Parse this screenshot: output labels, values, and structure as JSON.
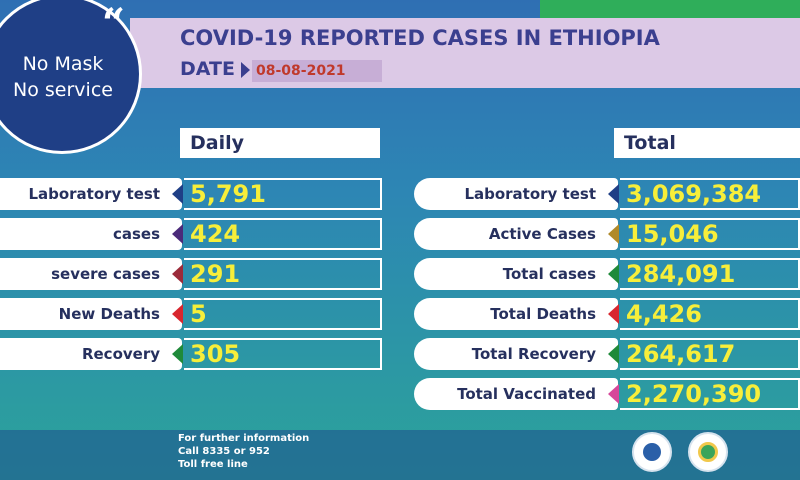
{
  "header": {
    "title": "COVID-19 REPORTED CASES IN ETHIOPIA",
    "date_label": "DATE",
    "date_value": "08-08-2021"
  },
  "badge": {
    "line1": "No Mask",
    "line2": "No service",
    "quote": "“"
  },
  "daily": {
    "title": "Daily",
    "rows": [
      {
        "label": "Laboratory test",
        "value": "5,791",
        "accent": "#1f3f86"
      },
      {
        "label": "cases",
        "value": "424",
        "accent": "#4b2a7a"
      },
      {
        "label": "severe cases",
        "value": "291",
        "accent": "#9b2b3a"
      },
      {
        "label": "New Deaths",
        "value": "5",
        "accent": "#d8262e"
      },
      {
        "label": "Recovery",
        "value": "305",
        "accent": "#1f8a3a"
      }
    ]
  },
  "total": {
    "title": "Total",
    "rows": [
      {
        "label": "Laboratory test",
        "value": "3,069,384",
        "accent": "#1f3f86"
      },
      {
        "label": "Active Cases",
        "value": "15,046",
        "accent": "#b08a2a"
      },
      {
        "label": "Total cases",
        "value": "284,091",
        "accent": "#1f8a3a"
      },
      {
        "label": "Total Deaths",
        "value": "4,426",
        "accent": "#d8262e"
      },
      {
        "label": "Total Recovery",
        "value": "264,617",
        "accent": "#1f8a3a"
      },
      {
        "label": "Total Vaccinated",
        "value": "2,270,390",
        "accent": "#d6479a"
      }
    ]
  },
  "footer": {
    "line1": "For further information",
    "line2": "Call 8335 or 952",
    "line3": "Toll free line"
  },
  "logos": [
    "ministry-of-health-logo",
    "ephi-logo"
  ]
}
